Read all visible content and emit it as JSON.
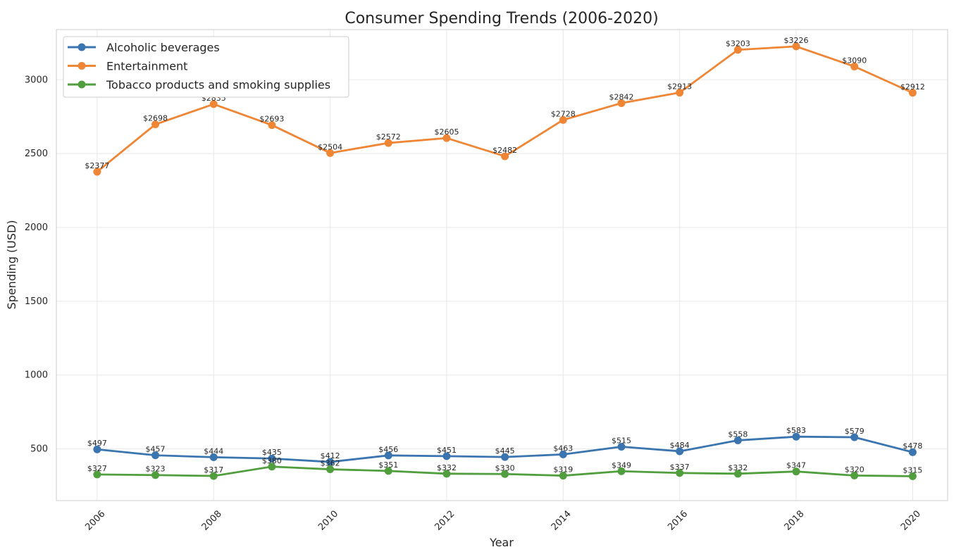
{
  "chart_data": {
    "type": "line",
    "title": "Consumer Spending Trends (2006-2020)",
    "xlabel": "Year",
    "ylabel": "Spending (USD)",
    "x": [
      2006,
      2007,
      2008,
      2009,
      2010,
      2011,
      2012,
      2013,
      2014,
      2015,
      2016,
      2017,
      2018,
      2019,
      2020
    ],
    "xticks": [
      "2006",
      "2008",
      "2010",
      "2012",
      "2014",
      "2016",
      "2018",
      "2020"
    ],
    "yticks": [
      "500",
      "1000",
      "1500",
      "2000",
      "2500",
      "3000"
    ],
    "xlim": [
      2005.3,
      2020.6
    ],
    "ylim": [
      150,
      3340
    ],
    "grid": true,
    "legend_position": "top-left",
    "series": [
      {
        "name": "Alcoholic beverages",
        "color": "#3b75af",
        "values": [
          497,
          457,
          444,
          435,
          412,
          456,
          451,
          445,
          463,
          515,
          484,
          558,
          583,
          579,
          478
        ],
        "labels": [
          "$497",
          "$457",
          "$444",
          "$435",
          "$412",
          "$456",
          "$451",
          "$445",
          "$463",
          "$515",
          "$484",
          "$558",
          "$583",
          "$579",
          "$478"
        ]
      },
      {
        "name": "Entertainment",
        "color": "#ef8636",
        "values": [
          2377,
          2698,
          2835,
          2693,
          2504,
          2572,
          2605,
          2482,
          2728,
          2842,
          2913,
          3203,
          3226,
          3090,
          2912
        ],
        "labels": [
          "$2377",
          "$2698",
          "$2835",
          "$2693",
          "$2504",
          "$2572",
          "$2605",
          "$2482",
          "$2728",
          "$2842",
          "$2913",
          "$3203",
          "$3226",
          "$3090",
          "$2912"
        ]
      },
      {
        "name": "Tobacco products and smoking supplies",
        "color": "#519e3e",
        "values": [
          327,
          323,
          317,
          380,
          362,
          351,
          332,
          330,
          319,
          349,
          337,
          332,
          347,
          320,
          315
        ],
        "labels": [
          "$327",
          "$323",
          "$317",
          "$380",
          "$362",
          "$351",
          "$332",
          "$330",
          "$319",
          "$349",
          "$337",
          "$332",
          "$347",
          "$320",
          "$315"
        ]
      }
    ]
  }
}
